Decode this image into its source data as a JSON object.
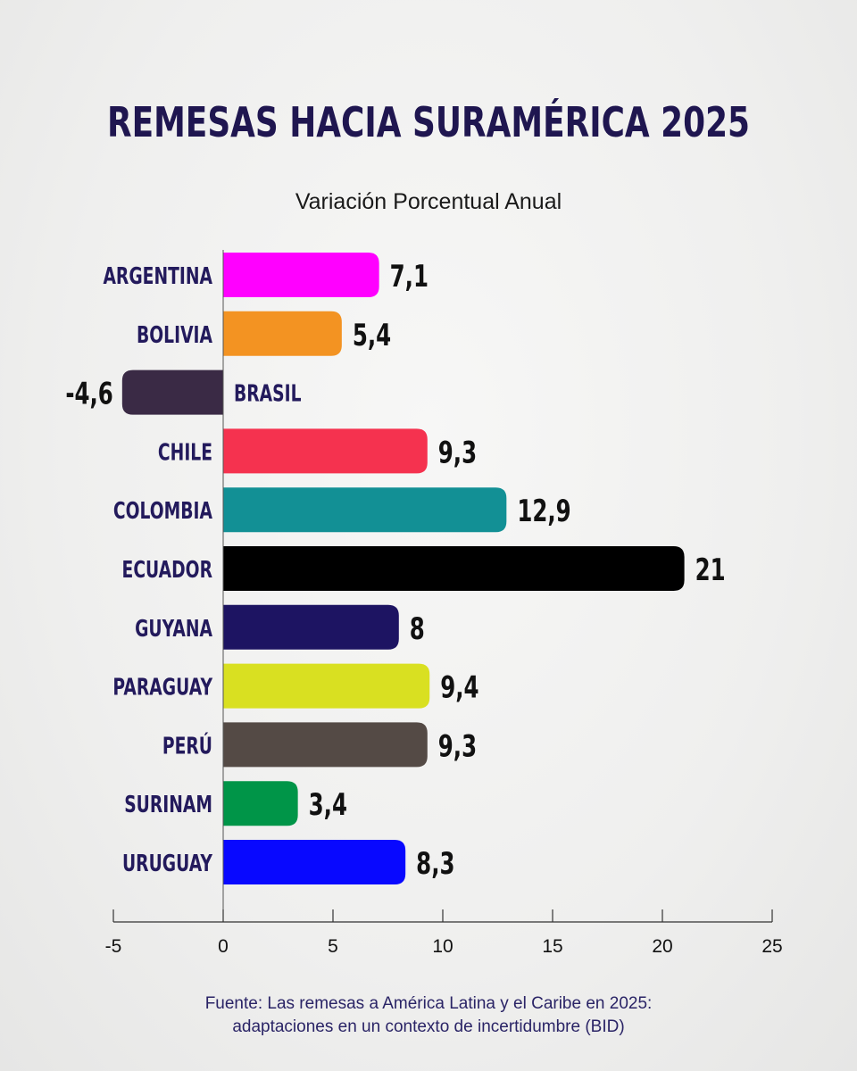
{
  "chart_data": {
    "type": "bar",
    "orientation": "horizontal",
    "title": "REMESAS HACIA SURAMÉRICA 2025",
    "subtitle": "Variación Porcentual Anual",
    "categories": [
      "ARGENTINA",
      "BOLIVIA",
      "BRASIL",
      "CHILE",
      "COLOMBIA",
      "ECUADOR",
      "GUYANA",
      "PARAGUAY",
      "PERÚ",
      "SURINAM",
      "URUGUAY"
    ],
    "values": [
      7.1,
      5.4,
      -4.6,
      9.3,
      12.9,
      21,
      8,
      9.4,
      9.3,
      3.4,
      8.3
    ],
    "value_labels": [
      "7,1",
      "5,4",
      "-4,6",
      "9,3",
      "12,9",
      "21",
      "8",
      "9,4",
      "9,3",
      "3,4",
      "8,3"
    ],
    "colors": [
      "#ff00ff",
      "#f39322",
      "#3a2a45",
      "#f5324f",
      "#129095",
      "#000000",
      "#1d1462",
      "#d9e021",
      "#544a45",
      "#009548",
      "#0808ff"
    ],
    "xlim": [
      -5,
      25
    ],
    "xticks": [
      "-5",
      "0",
      "5",
      "10",
      "15",
      "20",
      "25"
    ],
    "grid": false
  },
  "source": {
    "line1": "Fuente: Las remesas a América Latina y el Caribe en 2025:",
    "line2": "adaptaciones en un contexto de incertidumbre (BID)"
  }
}
